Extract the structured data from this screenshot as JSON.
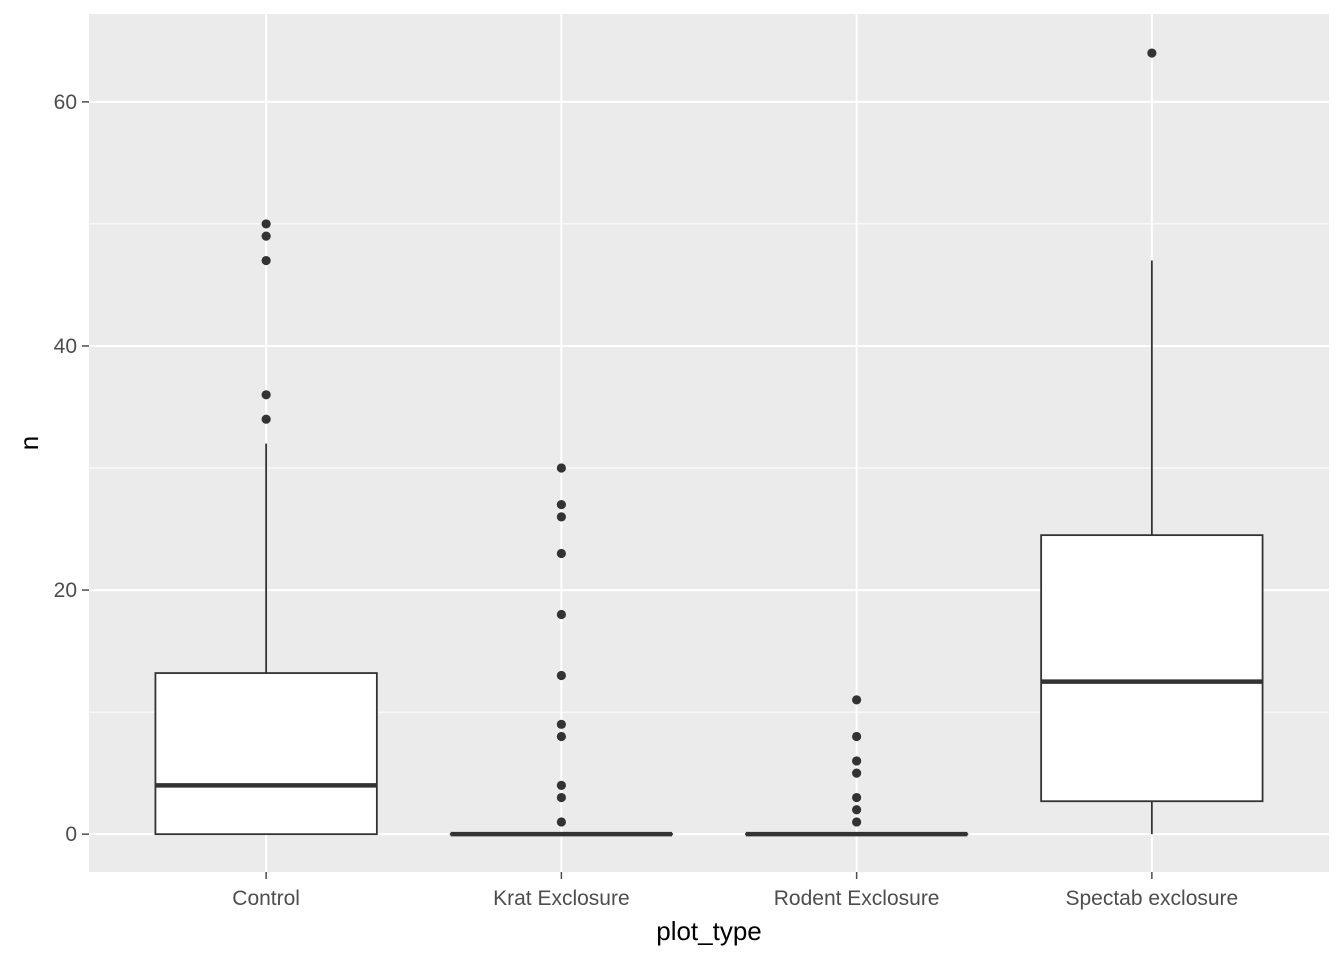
{
  "chart_data": {
    "type": "boxplot",
    "xlabel": "plot_type",
    "ylabel": "n",
    "ylim": [
      -3.1,
      67.2
    ],
    "yticks": [
      0,
      20,
      40,
      60
    ],
    "grid": true,
    "legend": "none",
    "colors": {
      "panel": "#ebebeb",
      "grid": "#ffffff",
      "box_fill": "#ffffff",
      "box_line": "#333333",
      "tick_label": "#4d4d4d"
    },
    "categories": [
      "Control",
      "Krat Exclosure",
      "Rodent Exclosure",
      "Spectab exclosure"
    ],
    "boxes": [
      {
        "category": "Control",
        "lower_whisker": 0,
        "q1": 0,
        "median": 4,
        "q3": 13.2,
        "upper_whisker": 32,
        "outliers": [
          34,
          36,
          47,
          49,
          50
        ]
      },
      {
        "category": "Krat Exclosure",
        "lower_whisker": 0,
        "q1": 0,
        "median": 0,
        "q3": 0,
        "upper_whisker": 0,
        "outliers": [
          1,
          3,
          4,
          8,
          9,
          13,
          18,
          23,
          26,
          27,
          30
        ]
      },
      {
        "category": "Rodent Exclosure",
        "lower_whisker": 0,
        "q1": 0,
        "median": 0,
        "q3": 0,
        "upper_whisker": 0,
        "outliers": [
          1,
          2,
          3,
          5,
          6,
          8,
          11
        ]
      },
      {
        "category": "Spectab exclosure",
        "lower_whisker": 0,
        "q1": 2.7,
        "median": 12.5,
        "q3": 24.5,
        "upper_whisker": 47,
        "outliers": [
          64
        ]
      }
    ]
  }
}
